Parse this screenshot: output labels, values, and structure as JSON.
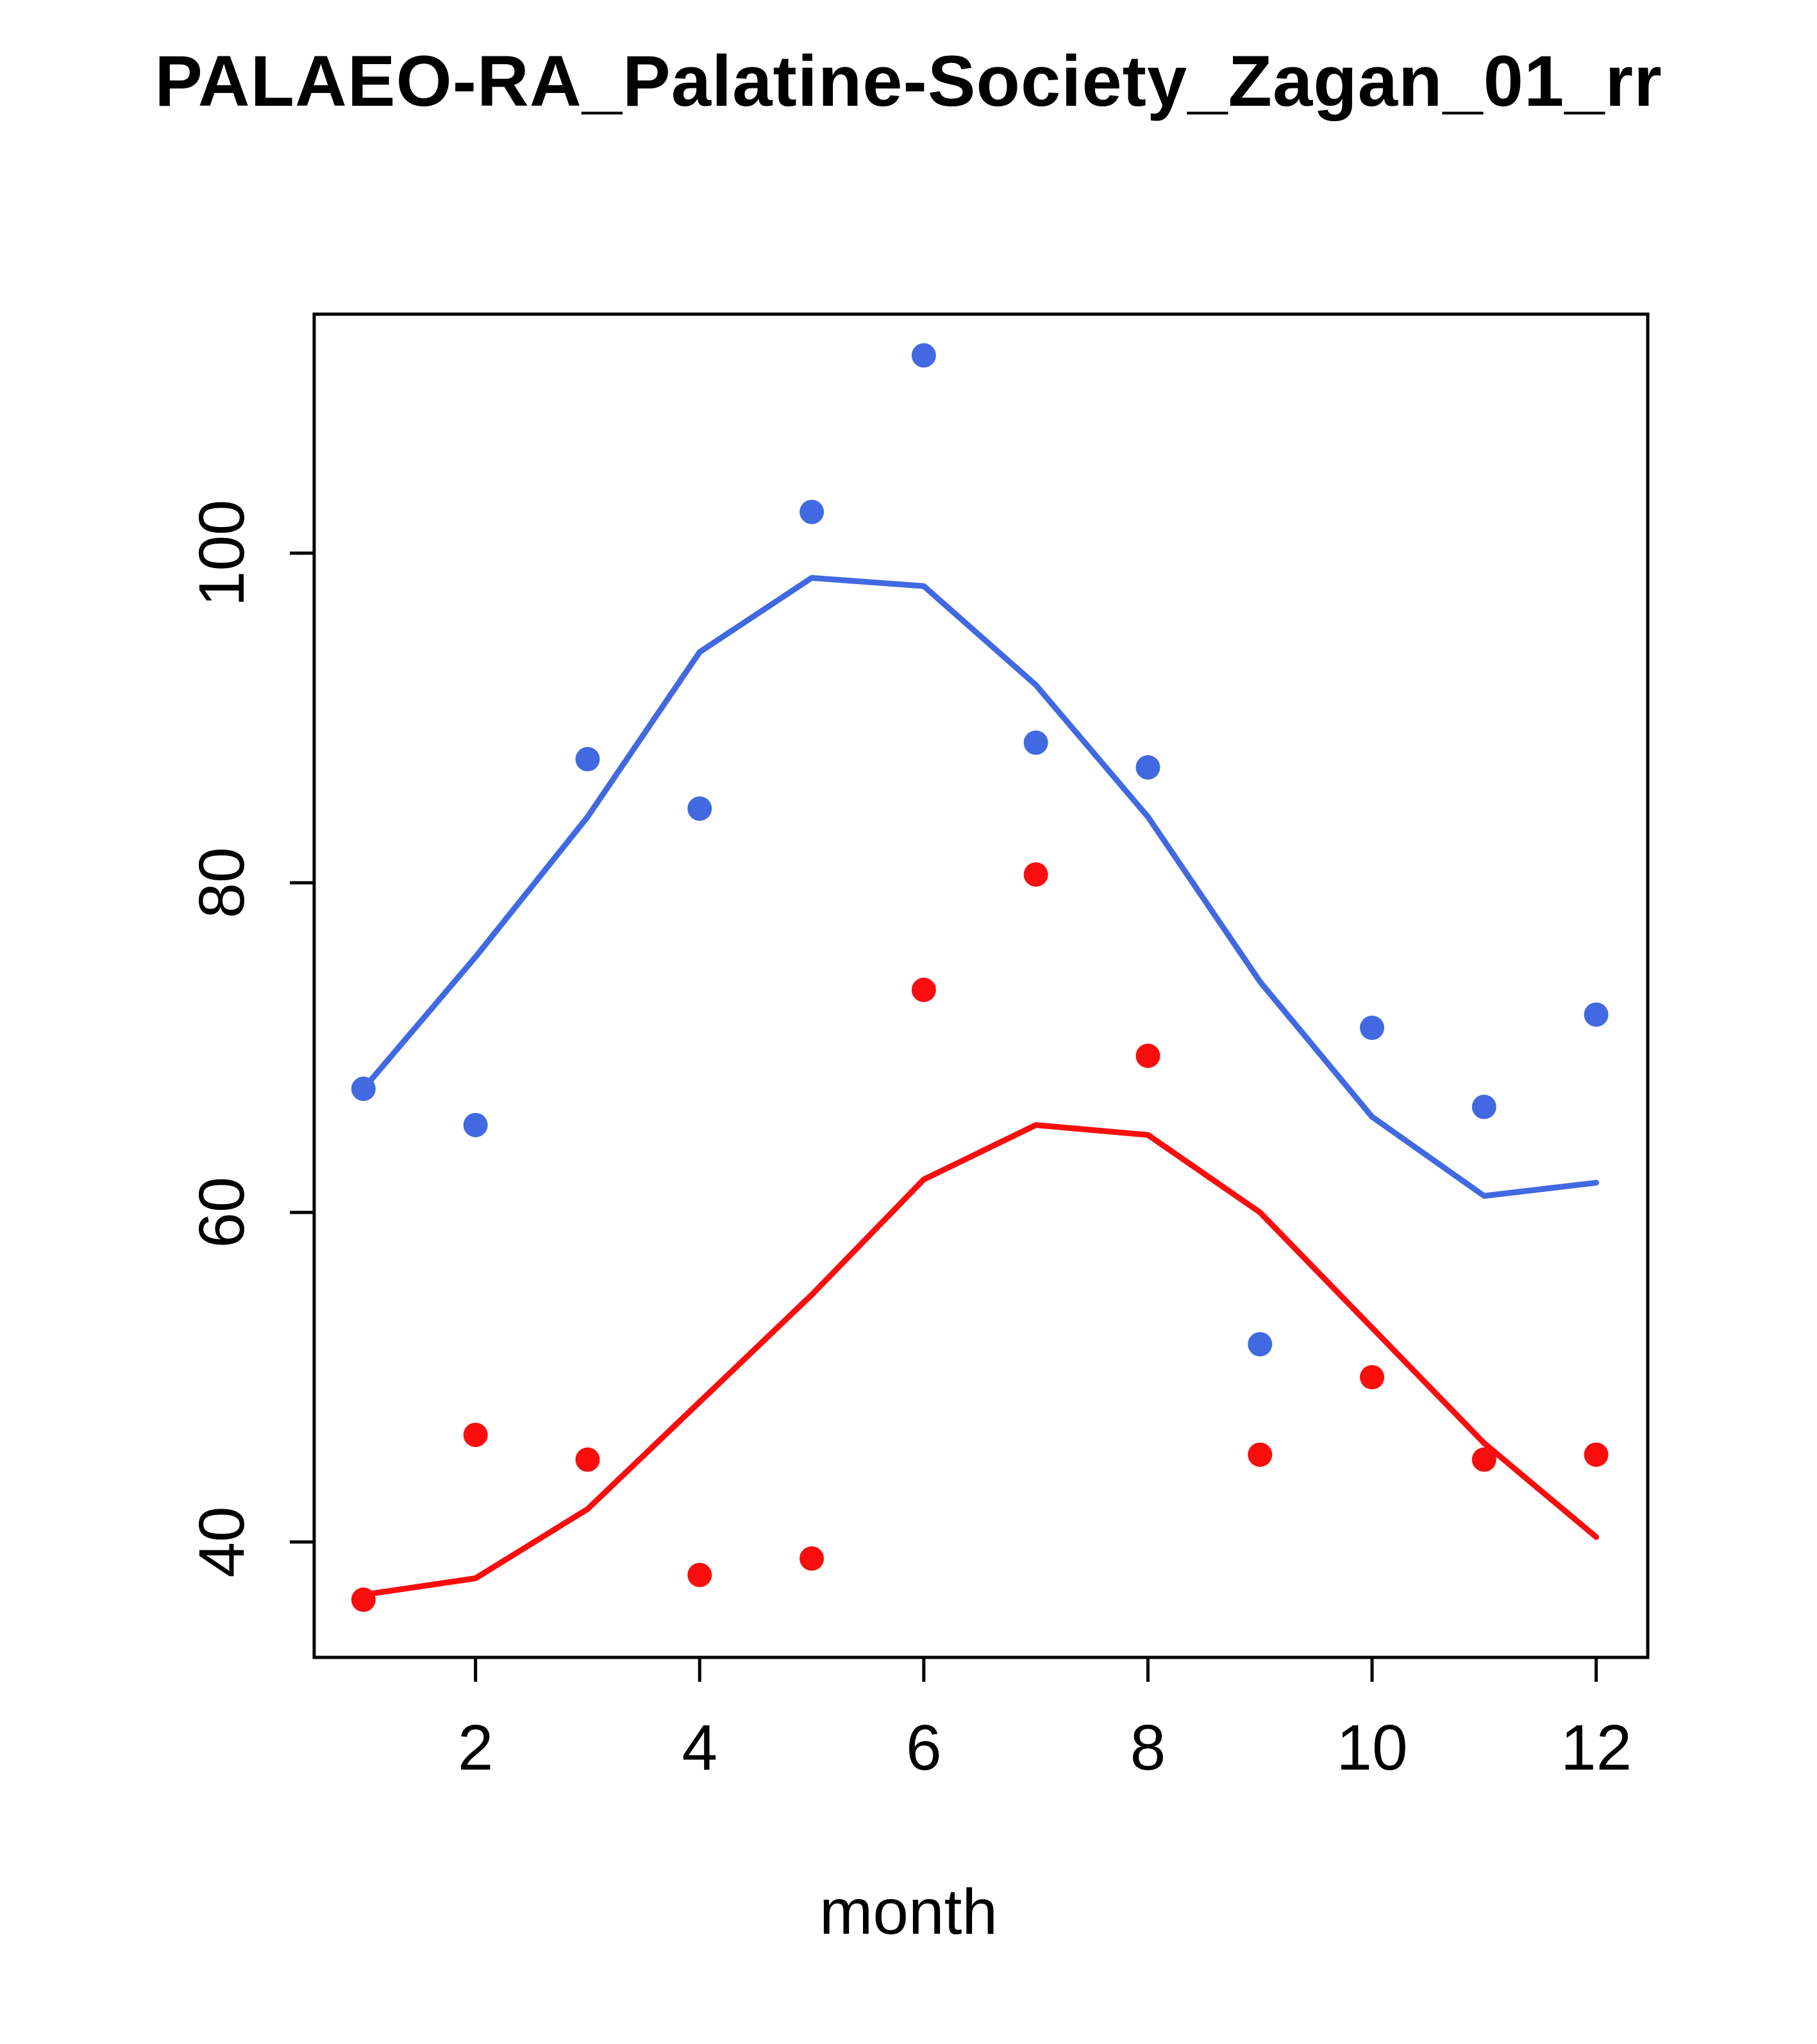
{
  "chart_data": {
    "type": "line",
    "title": "PALAEO-RA_Palatine-Society_Zagan_01_rr",
    "xlabel": "month",
    "ylabel": "",
    "x": [
      1,
      2,
      3,
      4,
      5,
      6,
      7,
      8,
      9,
      10,
      11,
      12
    ],
    "xlim": [
      0.56,
      12.46
    ],
    "ylim": [
      33,
      114.5
    ],
    "xtick_labels": [
      "2",
      "4",
      "6",
      "8",
      "10",
      "12"
    ],
    "xtick_values": [
      2,
      4,
      6,
      8,
      10,
      12
    ],
    "ytick_labels": [
      "40",
      "60",
      "80",
      "100"
    ],
    "ytick_values": [
      40,
      60,
      80,
      100
    ],
    "grid": false,
    "legend": "none",
    "colors": {
      "blue": "#4169e1",
      "red": "#fb0d0d",
      "axis": "#000000"
    },
    "series": [
      {
        "name": "blue-line",
        "style": "line",
        "color": "#4169e1",
        "values": [
          67.5,
          75.5,
          84,
          94,
          98.5,
          98,
          92,
          84,
          74,
          65.8,
          61,
          61.8
        ]
      },
      {
        "name": "red-line",
        "style": "line",
        "color": "#fb0d0d",
        "values": [
          36.8,
          37.8,
          42,
          48.5,
          55,
          62,
          65.3,
          64.7,
          60,
          53,
          46,
          40.3
        ]
      },
      {
        "name": "blue-points",
        "style": "points",
        "color": "#4169e1",
        "values": [
          67.5,
          65.3,
          87.5,
          84.5,
          102.5,
          112,
          88.5,
          87,
          52,
          71.2,
          66.4,
          72
        ]
      },
      {
        "name": "red-points",
        "style": "points",
        "color": "#fb0d0d",
        "values": [
          36.5,
          46.5,
          45,
          38,
          39,
          73.5,
          80.5,
          69.5,
          45.3,
          50,
          45,
          45.3
        ]
      }
    ]
  }
}
